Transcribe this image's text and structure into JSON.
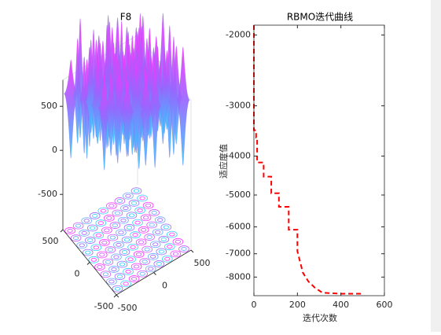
{
  "chart_data": [
    {
      "type": "surface",
      "title": "F8",
      "xlim": [
        -500,
        500
      ],
      "xticks": [
        -500,
        0,
        500
      ],
      "ylim": [
        -500,
        500
      ],
      "yticks": [
        -500,
        0,
        500
      ],
      "zlim": [
        -900,
        800
      ],
      "zticks": [
        -500,
        0,
        500
      ]
    },
    {
      "type": "line",
      "title": "RBMO迭代曲线",
      "xlabel": "迭代次数",
      "ylabel": "适应度值",
      "x": [
        0,
        0,
        10,
        10,
        15,
        15,
        45,
        45,
        80,
        80,
        115,
        115,
        160,
        160,
        200,
        200,
        225,
        250,
        280,
        315,
        400,
        495
      ],
      "values": [
        -1890,
        -3450,
        -3450,
        -3600,
        -3600,
        -4150,
        -4150,
        -4500,
        -4500,
        -4950,
        -4950,
        -5350,
        -5350,
        -6100,
        -6100,
        -6900,
        -7800,
        -8200,
        -8500,
        -8750,
        -8800,
        -8800
      ],
      "color": "#ff0000",
      "linestyle": "dashed",
      "xlim": [
        0,
        600
      ],
      "xticks": [
        0,
        200,
        400,
        600
      ],
      "ylim": [
        -8900,
        -1890
      ],
      "yticks": [
        -8000,
        -7000,
        -6000,
        -5000,
        -4000,
        -3000,
        -2000
      ],
      "yscale": "log"
    }
  ]
}
